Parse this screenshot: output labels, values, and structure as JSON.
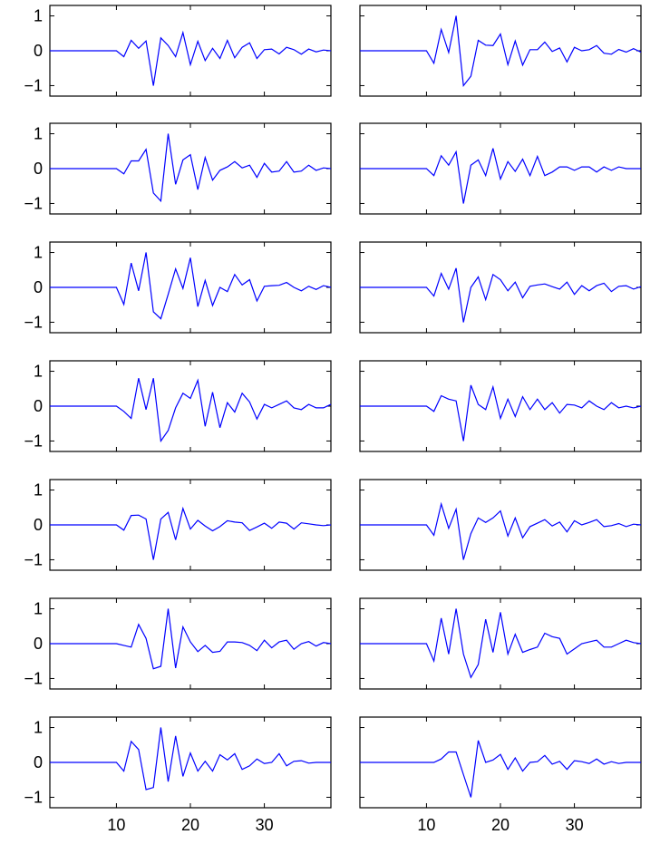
{
  "figure": {
    "colors": {
      "line": "#0000ff",
      "axes": "#000000",
      "background": "#ffffff"
    }
  },
  "chart_data": {
    "type": "line",
    "layout": "grid 7 rows x 2 columns of small line plots",
    "shared": {
      "xlim": [
        1,
        39
      ],
      "ylim": [
        -1.3,
        1.3
      ],
      "xticks": [
        10,
        20,
        30
      ],
      "xtick_labels": [
        "10",
        "20",
        "30"
      ],
      "yticks": [
        -1,
        0,
        1
      ],
      "ytick_labels": [
        "−1",
        "0",
        "1"
      ],
      "x_tick_labels_on": "bottom row only",
      "y_tick_labels_on": "left column only",
      "grid": false,
      "legend": "none",
      "x": [
        1,
        2,
        3,
        4,
        5,
        6,
        7,
        8,
        9,
        10,
        11,
        12,
        13,
        14,
        15,
        16,
        17,
        18,
        19,
        20,
        21,
        22,
        23,
        24,
        25,
        26,
        27,
        28,
        29,
        30,
        31,
        32,
        33,
        34,
        35,
        36,
        37,
        38,
        39
      ]
    },
    "panels": [
      {
        "row": 1,
        "col": 1,
        "y": [
          0,
          0,
          0,
          0,
          0,
          0,
          0,
          0,
          0,
          0,
          -0.17,
          0.3,
          0.07,
          0.28,
          -1.0,
          0.37,
          0.15,
          -0.17,
          0.52,
          -0.4,
          0.27,
          -0.28,
          0.07,
          -0.22,
          0.3,
          -0.2,
          0.1,
          0.23,
          -0.22,
          0.03,
          0.05,
          -0.09,
          0.1,
          0.03,
          -0.1,
          0.05,
          -0.03,
          0.02,
          0.0
        ]
      },
      {
        "row": 1,
        "col": 2,
        "y": [
          0,
          0,
          0,
          0,
          0,
          0,
          0,
          0,
          0,
          0,
          -0.36,
          0.61,
          -0.05,
          1.0,
          -1.0,
          -0.73,
          0.3,
          0.16,
          0.15,
          0.48,
          -0.4,
          0.28,
          -0.41,
          0.03,
          0.03,
          0.25,
          -0.02,
          0.08,
          -0.32,
          0.1,
          0.0,
          0.03,
          0.15,
          -0.07,
          -0.1,
          0.04,
          -0.04,
          0.06,
          -0.04
        ]
      },
      {
        "row": 2,
        "col": 1,
        "y": [
          0,
          0,
          0,
          0,
          0,
          0,
          0,
          0,
          0,
          0,
          -0.15,
          0.22,
          0.22,
          0.55,
          -0.7,
          -0.93,
          1.0,
          -0.45,
          0.25,
          0.4,
          -0.6,
          0.32,
          -0.33,
          -0.05,
          0.05,
          0.2,
          0.02,
          0.1,
          -0.25,
          0.15,
          -0.1,
          -0.07,
          0.2,
          -0.1,
          -0.07,
          0.1,
          -0.05,
          0.02,
          0.0
        ]
      },
      {
        "row": 2,
        "col": 2,
        "y": [
          0,
          0,
          0,
          0,
          0,
          0,
          0,
          0,
          0,
          0,
          -0.2,
          0.37,
          0.1,
          0.48,
          -1.0,
          0.1,
          0.25,
          -0.2,
          0.58,
          -0.3,
          0.2,
          -0.08,
          0.27,
          -0.2,
          0.35,
          -0.2,
          -0.1,
          0.05,
          0.05,
          -0.05,
          0.05,
          0.05,
          -0.1,
          0.05,
          -0.05,
          0.05,
          0.0,
          0.0,
          0.0
        ]
      },
      {
        "row": 3,
        "col": 1,
        "y": [
          0,
          0,
          0,
          0,
          0,
          0,
          0,
          0,
          0,
          0,
          -0.49,
          0.7,
          -0.1,
          1.0,
          -0.7,
          -0.9,
          -0.2,
          0.53,
          -0.03,
          0.85,
          -0.55,
          0.2,
          -0.52,
          0.0,
          -0.12,
          0.37,
          0.07,
          0.22,
          -0.39,
          0.03,
          0.05,
          0.06,
          0.14,
          0.0,
          -0.1,
          0.03,
          -0.06,
          0.05,
          0.0
        ]
      },
      {
        "row": 3,
        "col": 2,
        "y": [
          0,
          0,
          0,
          0,
          0,
          0,
          0,
          0,
          0,
          0,
          -0.25,
          0.4,
          -0.05,
          0.55,
          -1.0,
          0.0,
          0.3,
          -0.35,
          0.37,
          0.22,
          -0.1,
          0.15,
          -0.3,
          0.03,
          0.07,
          0.1,
          0.02,
          -0.05,
          0.15,
          -0.2,
          0.05,
          -0.1,
          0.05,
          0.12,
          -0.12,
          0.03,
          0.05,
          -0.05,
          0.02
        ]
      },
      {
        "row": 4,
        "col": 1,
        "y": [
          0,
          0,
          0,
          0,
          0,
          0,
          0,
          0,
          0,
          0,
          -0.15,
          -0.35,
          0.8,
          -0.1,
          0.8,
          -1.0,
          -0.7,
          -0.05,
          0.37,
          0.22,
          0.74,
          -0.58,
          0.4,
          -0.62,
          0.1,
          -0.17,
          0.37,
          0.12,
          -0.37,
          0.05,
          -0.05,
          0.05,
          0.15,
          -0.05,
          -0.1,
          0.05,
          -0.05,
          -0.05,
          0.05
        ]
      },
      {
        "row": 4,
        "col": 2,
        "y": [
          0,
          0,
          0,
          0,
          0,
          0,
          0,
          0,
          0,
          0,
          -0.15,
          0.3,
          0.2,
          0.15,
          -1.0,
          0.6,
          0.05,
          -0.1,
          0.55,
          -0.35,
          0.2,
          -0.3,
          0.27,
          -0.1,
          0.2,
          -0.1,
          0.1,
          -0.2,
          0.05,
          0.03,
          -0.05,
          0.15,
          0.0,
          -0.1,
          0.1,
          -0.05,
          0.0,
          -0.05,
          0.0
        ]
      },
      {
        "row": 5,
        "col": 1,
        "y": [
          0,
          0,
          0,
          0,
          0,
          0,
          0,
          0,
          0,
          0,
          -0.15,
          0.27,
          0.28,
          0.17,
          -1.0,
          0.17,
          0.36,
          -0.43,
          0.47,
          -0.12,
          0.13,
          -0.03,
          -0.17,
          -0.05,
          0.12,
          0.08,
          0.06,
          -0.16,
          -0.06,
          0.05,
          -0.1,
          0.08,
          0.05,
          -0.12,
          0.06,
          0.03,
          0.0,
          -0.02,
          0.0
        ]
      },
      {
        "row": 5,
        "col": 2,
        "y": [
          0,
          0,
          0,
          0,
          0,
          0,
          0,
          0,
          0,
          0,
          -0.3,
          0.6,
          -0.1,
          0.45,
          -1.0,
          -0.25,
          0.2,
          0.07,
          0.2,
          0.4,
          -0.32,
          0.2,
          -0.37,
          -0.05,
          0.05,
          0.15,
          -0.03,
          0.08,
          -0.2,
          0.12,
          0.0,
          0.07,
          0.15,
          -0.05,
          -0.02,
          0.04,
          -0.05,
          0.02,
          0.0
        ]
      },
      {
        "row": 6,
        "col": 1,
        "y": [
          0,
          0,
          0,
          0,
          0,
          0,
          0,
          0,
          0,
          0,
          -0.05,
          -0.1,
          0.55,
          0.15,
          -0.72,
          -0.65,
          1.0,
          -0.7,
          0.48,
          0.05,
          -0.23,
          -0.05,
          -0.25,
          -0.22,
          0.05,
          0.05,
          0.03,
          -0.05,
          -0.2,
          0.1,
          -0.12,
          0.05,
          0.1,
          -0.16,
          0.0,
          0.06,
          -0.07,
          0.03,
          0.0
        ]
      },
      {
        "row": 6,
        "col": 2,
        "y": [
          0,
          0,
          0,
          0,
          0,
          0,
          0,
          0,
          0,
          0,
          -0.5,
          0.73,
          -0.3,
          1.0,
          -0.3,
          -0.97,
          -0.6,
          0.7,
          -0.25,
          0.9,
          -0.3,
          0.27,
          -0.25,
          -0.17,
          -0.1,
          0.3,
          0.2,
          0.15,
          -0.3,
          -0.15,
          0.0,
          0.05,
          0.1,
          -0.1,
          -0.1,
          0.0,
          0.1,
          0.03,
          0.0
        ]
      },
      {
        "row": 7,
        "col": 1,
        "y": [
          0,
          0,
          0,
          0,
          0,
          0,
          0,
          0,
          0,
          0,
          -0.25,
          0.6,
          0.37,
          -0.78,
          -0.72,
          1.0,
          -0.55,
          0.76,
          -0.4,
          0.27,
          -0.25,
          0.03,
          -0.25,
          0.22,
          0.07,
          0.25,
          -0.2,
          -0.1,
          0.1,
          -0.03,
          0.0,
          0.25,
          -0.1,
          0.03,
          0.05,
          -0.02,
          0.0,
          0.0,
          0.0
        ]
      },
      {
        "row": 7,
        "col": 2,
        "y": [
          0,
          0,
          0,
          0,
          0,
          0,
          0,
          0,
          0,
          0,
          0.0,
          0.1,
          0.3,
          0.3,
          -0.35,
          -1.0,
          0.63,
          0.0,
          0.07,
          0.23,
          -0.2,
          0.13,
          -0.25,
          0.0,
          0.02,
          0.2,
          -0.05,
          0.03,
          -0.2,
          0.05,
          0.02,
          -0.03,
          0.1,
          -0.05,
          0.02,
          -0.03,
          0.0,
          0.0,
          0.0
        ]
      }
    ]
  }
}
